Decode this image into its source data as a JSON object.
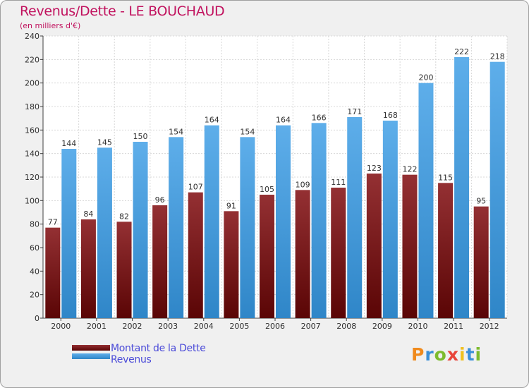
{
  "header": {
    "title": "Revenus/Dette - LE BOUCHAUD",
    "subtitle": "(en milliers d'€)"
  },
  "colors": {
    "dette": "#7a1418",
    "revenus": "#4aa0e0",
    "title": "#c1125e",
    "legend_text": "#4a4ad8"
  },
  "legend": {
    "dette_label": "Montant de la Dette",
    "revenus_label": "Revenus"
  },
  "logo": {
    "text": "Proxiti",
    "letter_colors": [
      "#f08a1c",
      "#3a8fd8",
      "#7dbb2e",
      "#e8443a",
      "#f0c020",
      "#3a8fd8",
      "#7dbb2e"
    ]
  },
  "chart_data": {
    "type": "bar",
    "categories": [
      "2000",
      "2001",
      "2002",
      "2003",
      "2004",
      "2005",
      "2006",
      "2007",
      "2008",
      "2009",
      "2010",
      "2011",
      "2012"
    ],
    "series": [
      {
        "name": "Montant de la Dette",
        "values": [
          77,
          84,
          82,
          96,
          107,
          91,
          105,
          109,
          111,
          123,
          122,
          115,
          95
        ]
      },
      {
        "name": "Revenus",
        "values": [
          144,
          145,
          150,
          154,
          164,
          154,
          164,
          166,
          171,
          168,
          200,
          222,
          218
        ]
      }
    ],
    "ylim": [
      0,
      240
    ],
    "yticks": [
      0,
      20,
      40,
      60,
      80,
      100,
      120,
      140,
      160,
      180,
      200,
      220,
      240
    ],
    "grid": true,
    "legend_position": "bottom-left"
  }
}
